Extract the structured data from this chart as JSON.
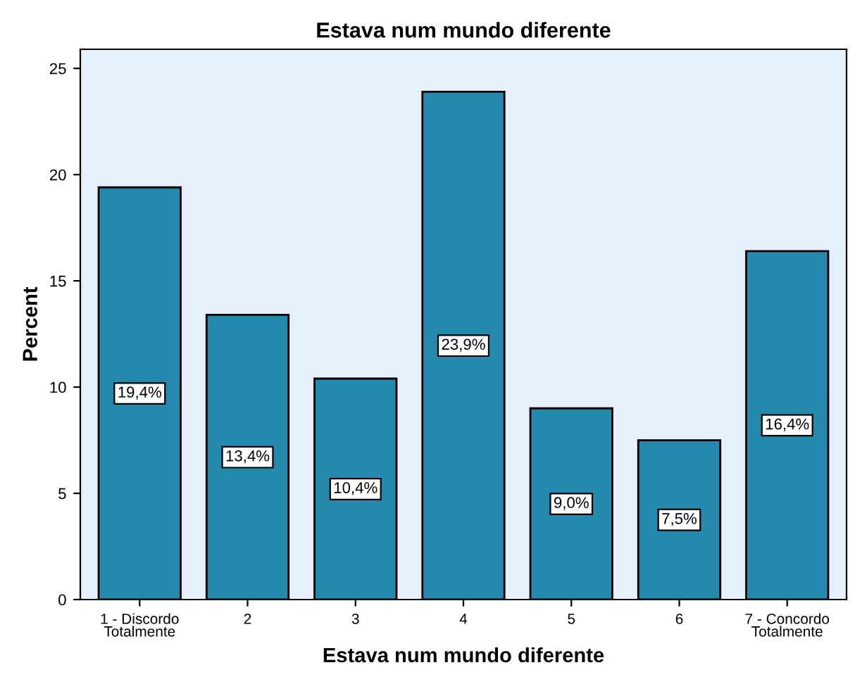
{
  "chart_data": {
    "type": "bar",
    "title": "Estava num mundo diferente",
    "xlabel": "Estava num mundo diferente",
    "ylabel": "Percent",
    "categories": [
      "1 - Discordo\nTotalmente",
      "2",
      "3",
      "4",
      "5",
      "6",
      "7 - Concordo\nTotalmente"
    ],
    "values": [
      19.4,
      13.4,
      10.4,
      23.9,
      9.0,
      7.5,
      16.4
    ],
    "value_labels": [
      "19,4%",
      "13,4%",
      "10,4%",
      "23,9%",
      "9,0%",
      "7,5%",
      "16,4%"
    ],
    "color": "#2589ad",
    "ylim": [
      0,
      25.9
    ],
    "yticks": [
      0,
      5,
      10,
      15,
      20,
      25
    ],
    "grid": false,
    "legend": false
  }
}
